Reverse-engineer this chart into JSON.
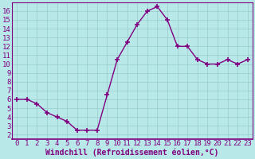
{
  "x": [
    0,
    1,
    2,
    3,
    4,
    5,
    6,
    7,
    8,
    9,
    10,
    11,
    12,
    13,
    14,
    15,
    16,
    17,
    18,
    19,
    20,
    21,
    22,
    23
  ],
  "y": [
    6.0,
    6.0,
    5.5,
    4.5,
    4.0,
    3.5,
    2.5,
    2.5,
    2.5,
    6.5,
    10.5,
    12.5,
    14.5,
    16.0,
    16.5,
    15.0,
    12.0,
    12.0,
    10.5,
    10.0,
    10.0,
    10.5,
    10.0,
    10.5
  ],
  "line_color": "#800080",
  "marker": "+",
  "marker_color": "#800080",
  "bg_color": "#b8e8e8",
  "grid_color": "#99cccc",
  "border_color": "#800080",
  "tick_color": "#800080",
  "xlabel": "Windchill (Refroidissement éolien,°C)",
  "xlim_min": -0.5,
  "xlim_max": 23.5,
  "ylim_min": 1.5,
  "ylim_max": 17.0,
  "yticks": [
    2,
    3,
    4,
    5,
    6,
    7,
    8,
    9,
    10,
    11,
    12,
    13,
    14,
    15,
    16
  ],
  "xticks": [
    0,
    1,
    2,
    3,
    4,
    5,
    6,
    7,
    8,
    9,
    10,
    11,
    12,
    13,
    14,
    15,
    16,
    17,
    18,
    19,
    20,
    21,
    22,
    23
  ],
  "font_size": 6.5,
  "label_font_size": 7.0,
  "linewidth": 1.0,
  "markersize": 4
}
